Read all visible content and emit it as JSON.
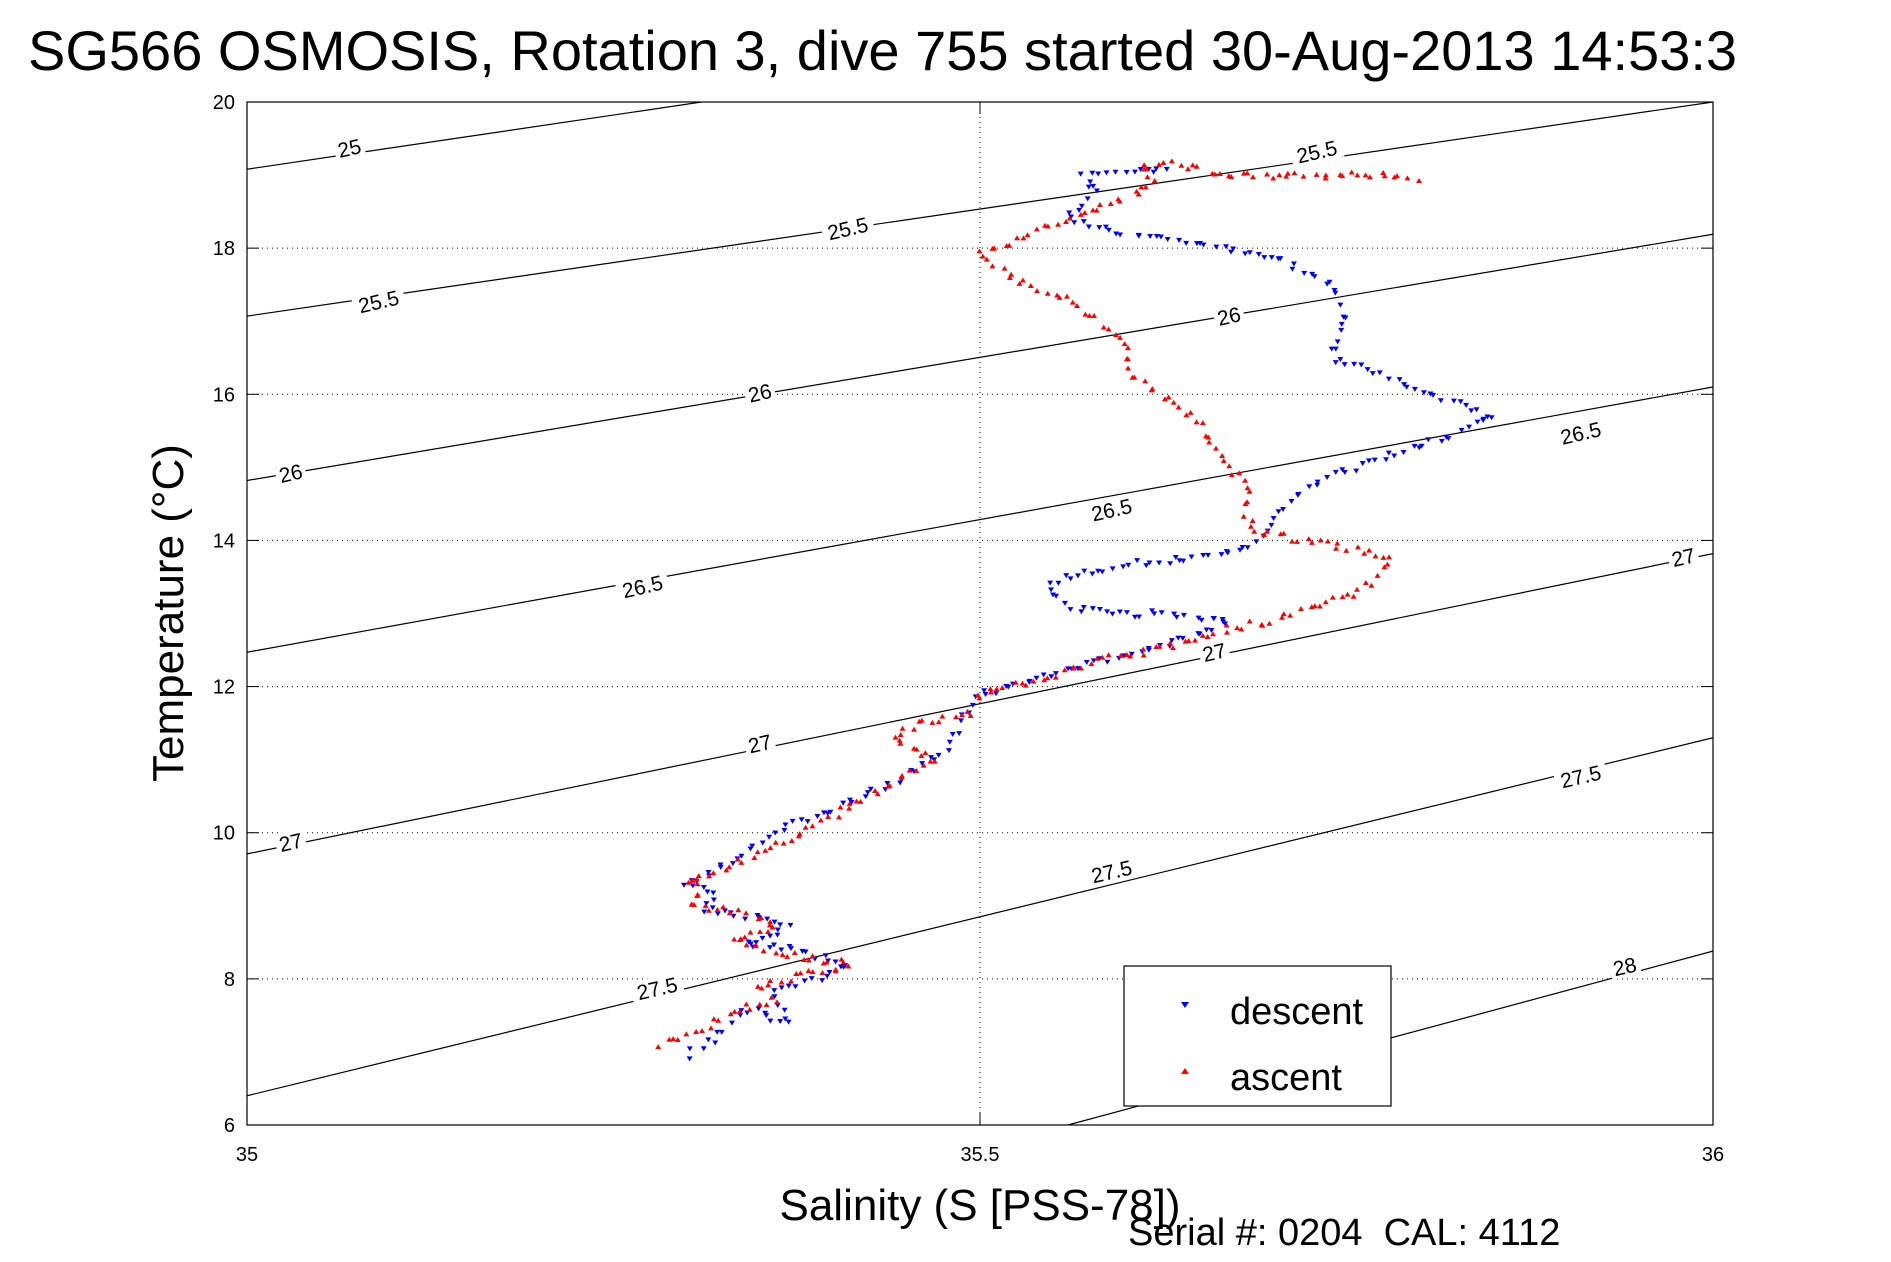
{
  "chart_data": {
    "type": "scatter",
    "title": "SG566 OSMOSIS, Rotation 3, dive 755 started 30-Aug-2013 14:53:3",
    "xlabel": "Salinity (S [PSS-78])",
    "ylabel": "Temperature (°C)",
    "xlim": [
      35,
      36
    ],
    "ylim": [
      6,
      20
    ],
    "x_ticks": [
      35,
      35.5,
      36
    ],
    "x_tick_labels": [
      "35",
      "35.5",
      "36"
    ],
    "y_ticks": [
      6,
      8,
      10,
      12,
      14,
      16,
      18,
      20
    ],
    "y_tick_labels": [
      "6",
      "8",
      "10",
      "12",
      "14",
      "16",
      "18",
      "20"
    ],
    "grid": "dotted, at tick marks",
    "legend_placement": "bottom-right",
    "footer": "Serial #: 0204  CAL: 4112",
    "isopycnals": [
      {
        "label": "25",
        "sigma": 25,
        "points": [
          [
            35,
            19.08
          ],
          [
            35.31,
            20
          ]
        ]
      },
      {
        "label": "25.5",
        "sigma": 25.5,
        "points": [
          [
            35,
            17.07
          ],
          [
            36,
            20.0
          ]
        ]
      },
      {
        "label": "26",
        "sigma": 26,
        "points": [
          [
            35,
            14.82
          ],
          [
            36,
            18.19
          ]
        ]
      },
      {
        "label": "26.5",
        "sigma": 26.5,
        "points": [
          [
            35,
            12.47
          ],
          [
            36,
            16.1
          ]
        ]
      },
      {
        "label": "27",
        "sigma": 27,
        "points": [
          [
            35,
            9.71
          ],
          [
            36,
            13.82
          ]
        ]
      },
      {
        "label": "27.5",
        "sigma": 27.5,
        "points": [
          [
            35,
            6.4
          ],
          [
            36,
            11.3
          ]
        ]
      },
      {
        "label": "28",
        "sigma": 28,
        "points": [
          [
            35.56,
            6
          ],
          [
            36,
            8.38
          ]
        ]
      }
    ],
    "isopycnal_labels": [
      {
        "text": "25",
        "x": 35.07,
        "y": 19.35
      },
      {
        "text": "25.5",
        "x": 35.09,
        "y": 17.25
      },
      {
        "text": "25.5",
        "x": 35.41,
        "y": 18.25
      },
      {
        "text": "25.5",
        "x": 35.73,
        "y": 19.3
      },
      {
        "text": "26",
        "x": 35.03,
        "y": 14.9
      },
      {
        "text": "26",
        "x": 35.35,
        "y": 16.0
      },
      {
        "text": "26",
        "x": 35.67,
        "y": 17.05
      },
      {
        "text": "26.5",
        "x": 35.27,
        "y": 13.35
      },
      {
        "text": "26.5",
        "x": 35.59,
        "y": 14.4
      },
      {
        "text": "26.5",
        "x": 35.91,
        "y": 15.45
      },
      {
        "text": "27",
        "x": 35.03,
        "y": 9.85
      },
      {
        "text": "27",
        "x": 35.35,
        "y": 11.2
      },
      {
        "text": "27",
        "x": 35.66,
        "y": 12.45
      },
      {
        "text": "27",
        "x": 35.98,
        "y": 13.75
      },
      {
        "text": "27.5",
        "x": 35.28,
        "y": 7.85
      },
      {
        "text": "27.5",
        "x": 35.59,
        "y": 9.45
      },
      {
        "text": "27.5",
        "x": 35.91,
        "y": 10.75
      },
      {
        "text": "28",
        "x": 35.94,
        "y": 8.15
      }
    ],
    "series": [
      {
        "name": "descent",
        "color": "#0000ff",
        "marker": "triangle-down",
        "path": [
          [
            35.3,
            6.95
          ],
          [
            35.32,
            7.2
          ],
          [
            35.34,
            7.6
          ],
          [
            35.37,
            7.4
          ],
          [
            35.36,
            7.8
          ],
          [
            35.4,
            8.1
          ],
          [
            35.41,
            8.2
          ],
          [
            35.37,
            8.4
          ],
          [
            35.34,
            8.5
          ],
          [
            35.37,
            8.7
          ],
          [
            35.35,
            8.85
          ],
          [
            35.31,
            8.95
          ],
          [
            35.32,
            9.15
          ],
          [
            35.3,
            9.3
          ],
          [
            35.33,
            9.6
          ],
          [
            35.36,
            10.0
          ],
          [
            35.41,
            10.4
          ],
          [
            35.45,
            10.8
          ],
          [
            35.48,
            11.2
          ],
          [
            35.49,
            11.6
          ],
          [
            35.5,
            11.9
          ],
          [
            35.53,
            12.05
          ],
          [
            35.57,
            12.3
          ],
          [
            35.61,
            12.5
          ],
          [
            35.65,
            12.7
          ],
          [
            35.67,
            12.9
          ],
          [
            35.64,
            13.0
          ],
          [
            35.59,
            13.0
          ],
          [
            35.56,
            13.1
          ],
          [
            35.545,
            13.3
          ],
          [
            35.55,
            13.45
          ],
          [
            35.58,
            13.6
          ],
          [
            35.61,
            13.7
          ],
          [
            35.64,
            13.75
          ],
          [
            35.66,
            13.8
          ],
          [
            35.69,
            14.0
          ],
          [
            35.71,
            14.5
          ],
          [
            35.74,
            14.9
          ],
          [
            35.77,
            15.1
          ],
          [
            35.8,
            15.3
          ],
          [
            35.83,
            15.5
          ],
          [
            35.85,
            15.7
          ],
          [
            35.74,
            16.5
          ],
          [
            35.75,
            17.0
          ],
          [
            35.74,
            17.5
          ],
          [
            35.7,
            17.9
          ],
          [
            35.6,
            18.2
          ],
          [
            35.56,
            18.4
          ],
          [
            35.57,
            18.6
          ],
          [
            35.58,
            18.8
          ],
          [
            35.57,
            19.0
          ],
          [
            35.6,
            19.05
          ],
          [
            35.62,
            19.1
          ],
          [
            35.63,
            19.05
          ]
        ],
        "count": 340
      },
      {
        "name": "ascent",
        "color": "#ff0000",
        "marker": "triangle-up",
        "path": [
          [
            35.28,
            7.1
          ],
          [
            35.31,
            7.3
          ],
          [
            35.33,
            7.55
          ],
          [
            35.36,
            7.7
          ],
          [
            35.35,
            7.9
          ],
          [
            35.39,
            8.1
          ],
          [
            35.41,
            8.2
          ],
          [
            35.36,
            8.35
          ],
          [
            35.33,
            8.55
          ],
          [
            35.36,
            8.7
          ],
          [
            35.35,
            8.85
          ],
          [
            35.32,
            8.95
          ],
          [
            35.3,
            9.0
          ],
          [
            35.31,
            9.2
          ],
          [
            35.3,
            9.3
          ],
          [
            35.33,
            9.55
          ],
          [
            35.37,
            9.9
          ],
          [
            35.41,
            10.35
          ],
          [
            35.45,
            10.75
          ],
          [
            35.47,
            11.0
          ],
          [
            35.44,
            11.3
          ],
          [
            35.46,
            11.5
          ],
          [
            35.49,
            11.6
          ],
          [
            35.5,
            11.9
          ],
          [
            35.54,
            12.1
          ],
          [
            35.58,
            12.35
          ],
          [
            35.62,
            12.5
          ],
          [
            35.66,
            12.75
          ],
          [
            35.7,
            12.9
          ],
          [
            35.73,
            13.1
          ],
          [
            35.76,
            13.3
          ],
          [
            35.77,
            13.5
          ],
          [
            35.78,
            13.75
          ],
          [
            35.74,
            13.95
          ],
          [
            35.69,
            14.1
          ],
          [
            35.68,
            14.4
          ],
          [
            35.685,
            14.7
          ],
          [
            35.67,
            15.0
          ],
          [
            35.66,
            15.3
          ],
          [
            35.65,
            15.6
          ],
          [
            35.6,
            16.3
          ],
          [
            35.6,
            16.7
          ],
          [
            35.56,
            17.3
          ],
          [
            35.52,
            17.6
          ],
          [
            35.5,
            17.9
          ],
          [
            35.55,
            18.3
          ],
          [
            35.6,
            18.7
          ],
          [
            35.62,
            18.9
          ],
          [
            35.61,
            19.1
          ],
          [
            35.63,
            19.15
          ],
          [
            35.67,
            19.0
          ],
          [
            35.69,
            19.0
          ],
          [
            35.72,
            19.0
          ],
          [
            35.77,
            19.0
          ],
          [
            35.8,
            18.9
          ]
        ],
        "count": 340
      }
    ]
  }
}
